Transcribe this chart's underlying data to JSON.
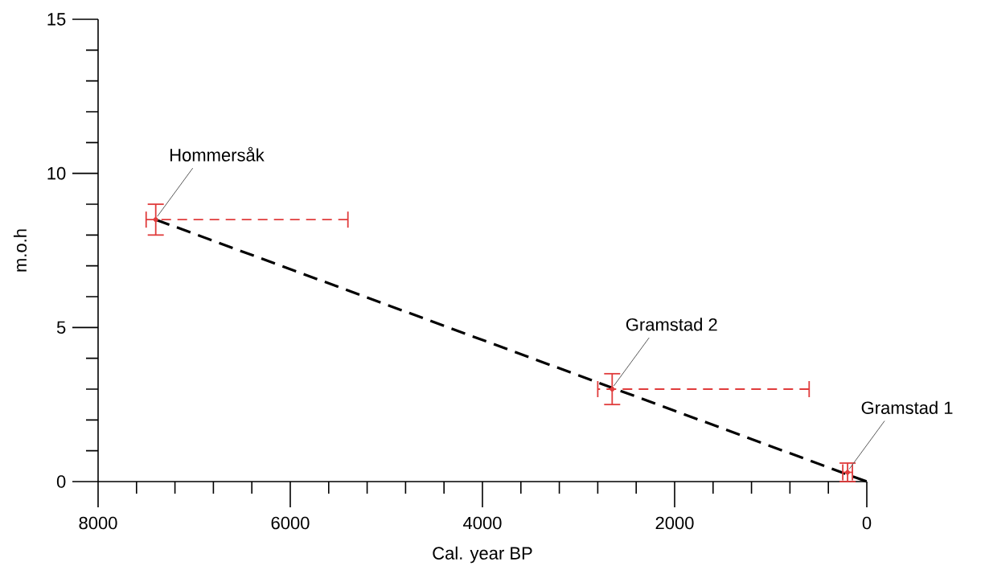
{
  "chart_data": {
    "type": "scatter",
    "xlabel": "Cal. year BP",
    "ylabel": "m.o.h",
    "xlim": [
      8000,
      0
    ],
    "ylim": [
      0,
      15
    ],
    "xticks": [
      0,
      {
        "value": 400,
        "label": null
      },
      {
        "value": 800,
        "label": null
      },
      {
        "value": 1200,
        "label": null
      },
      {
        "value": 1600,
        "label": null
      },
      2000,
      {
        "value": 2400,
        "label": null
      },
      {
        "value": 2800,
        "label": null
      },
      {
        "value": 3200,
        "label": null
      },
      {
        "value": 3600,
        "label": null
      },
      4000,
      {
        "value": 4400,
        "label": null
      },
      {
        "value": 4800,
        "label": null
      },
      {
        "value": 5200,
        "label": null
      },
      {
        "value": 5600,
        "label": null
      },
      6000,
      {
        "value": 6400,
        "label": null
      },
      {
        "value": 6800,
        "label": null
      },
      {
        "value": 7200,
        "label": null
      },
      {
        "value": 7600,
        "label": null
      },
      8000
    ],
    "yticks": [
      0,
      {
        "value": 1,
        "label": null
      },
      {
        "value": 2,
        "label": null
      },
      {
        "value": 3,
        "label": null
      },
      {
        "value": 4,
        "label": null
      },
      5,
      {
        "value": 6,
        "label": null
      },
      {
        "value": 7,
        "label": null
      },
      {
        "value": 8,
        "label": null
      },
      {
        "value": 9,
        "label": null
      },
      10,
      {
        "value": 11,
        "label": null
      },
      {
        "value": 12,
        "label": null
      },
      {
        "value": 13,
        "label": null
      },
      {
        "value": 14,
        "label": null
      },
      15
    ],
    "series": [
      {
        "type": "line",
        "color": "#000000",
        "line_style": "dashed",
        "marker": "none",
        "x": [
          7400,
          0
        ],
        "values": [
          8.5,
          0
        ]
      },
      {
        "color": "#e03c3c",
        "marker": "circle",
        "x": [
          7400,
          2650,
          200
        ],
        "values": [
          8.5,
          3,
          0.3
        ],
        "errors": [
          0.5,
          0.5,
          0.3
        ],
        "xerrors": [
          [
            5400,
            7500
          ],
          [
            600,
            2800
          ],
          [
            150,
            250
          ]
        ]
      }
    ],
    "annotations": [
      {
        "text": "Hommersåk",
        "x": 7400,
        "y": 8.5
      },
      {
        "text": "Gramstad 2",
        "x": 2650,
        "y": 3
      },
      {
        "text": "Gramstad 1",
        "x": 200,
        "y": 0.3
      }
    ]
  }
}
